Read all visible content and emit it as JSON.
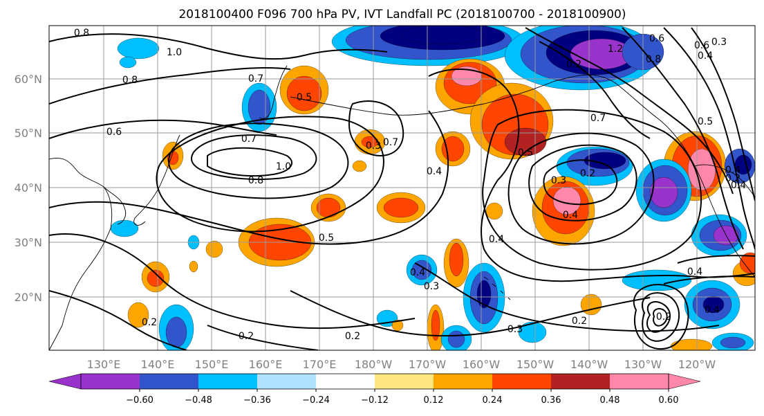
{
  "title": "2018100400 F096 700 hPa PV, IVT Landfall PC (2018100700 - 2018100900)",
  "map": {
    "lat_labels": [
      "60°N",
      "50°N",
      "40°N",
      "30°N",
      "20°N"
    ],
    "lon_labels": [
      "130°E",
      "140°E",
      "150°E",
      "160°E",
      "170°E",
      "180°W",
      "170°W",
      "160°W",
      "150°W",
      "140°W",
      "130°W",
      "120°W"
    ],
    "contour_labels": [
      "0.8",
      "1.0",
      "0.7",
      "0.6",
      "0.5",
      "0.8",
      "0.6",
      "0.7",
      "1.0",
      "0.8",
      "0.7",
      "0.4",
      "0.5",
      "0.3",
      "0.2",
      "0.4",
      "0.4",
      "0.5",
      "0.4",
      "0.3",
      "0.4",
      "0.2",
      "0.2",
      "0.2",
      "0.3",
      "0.2",
      "0.4",
      "0.2",
      "0.4",
      "0.2",
      "0.7",
      "0.3",
      "0.2",
      "0.4",
      "0.6",
      "0.8",
      "1.2",
      "0.3",
      "0.4",
      "0.5"
    ]
  },
  "colorbar": {
    "colors": [
      "#9933cc",
      "#000080",
      "#3355cc",
      "#00bfff",
      "#b0e2ff",
      "#ffffff",
      "#ffe680",
      "#ffa500",
      "#ff4500",
      "#b22222",
      "#ff88aa"
    ],
    "tick_labels": [
      "−0.60",
      "−0.48",
      "−0.36",
      "−0.24",
      "−0.12",
      "0.12",
      "0.24",
      "0.36",
      "0.48",
      "0.60"
    ]
  }
}
